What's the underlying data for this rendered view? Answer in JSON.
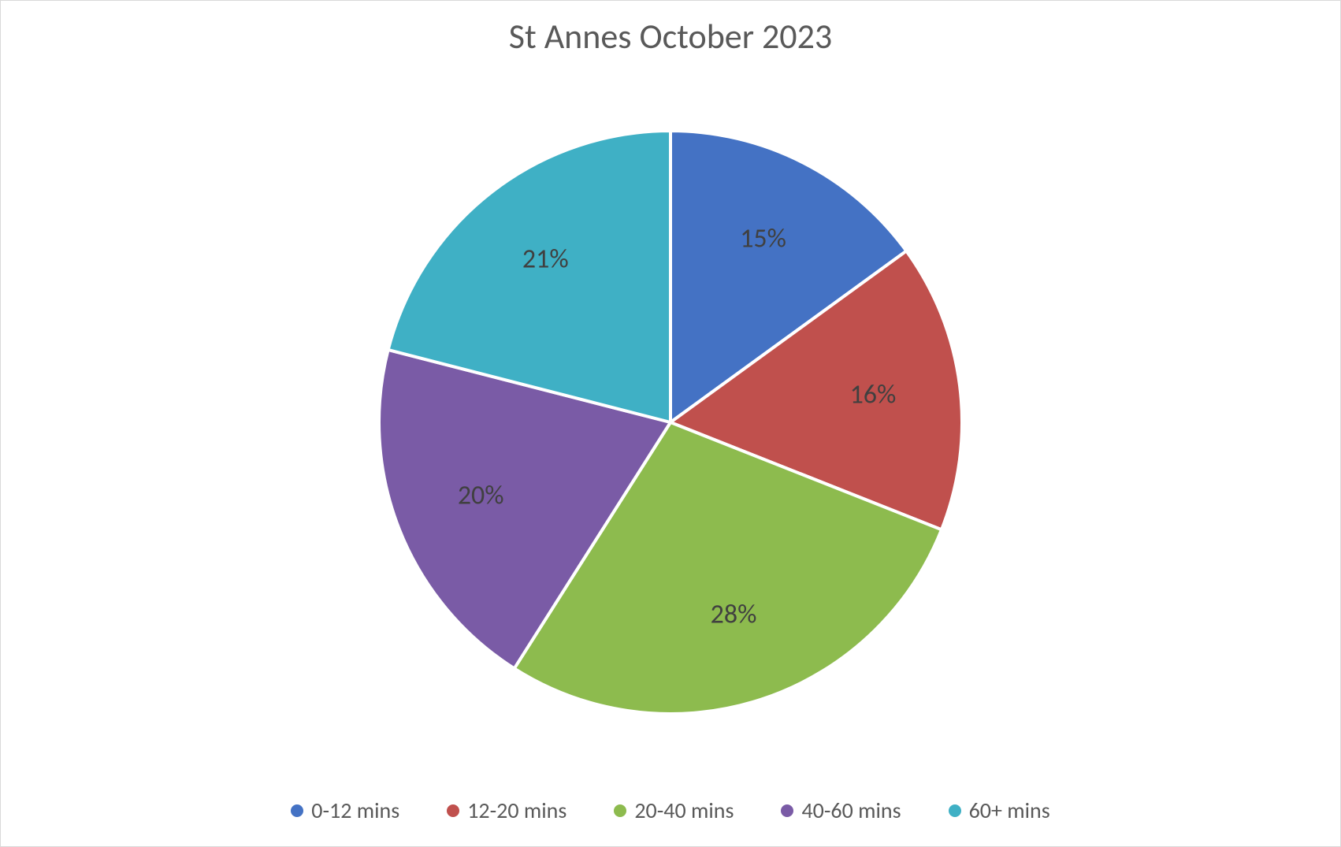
{
  "chart": {
    "type": "pie",
    "title": "St Annes October 2023",
    "title_fontsize": 44,
    "title_color": "#595959",
    "background_color": "#ffffff",
    "border_color": "#d9d9d9",
    "pie_radius": 370,
    "slice_gap_color": "#ffffff",
    "slice_gap_width": 4,
    "label_fontsize": 34,
    "label_color": "#404040",
    "legend_fontsize": 28,
    "legend_color": "#595959",
    "series": [
      {
        "label": "0-12 mins",
        "value": 15,
        "display": "15%",
        "color": "#4472c4"
      },
      {
        "label": "12-20 mins",
        "value": 16,
        "display": "16%",
        "color": "#c0504d"
      },
      {
        "label": "20-40 mins",
        "value": 28,
        "display": "28%",
        "color": "#8dbb4e"
      },
      {
        "label": "40-60 mins",
        "value": 20,
        "display": "20%",
        "color": "#7a5ba6"
      },
      {
        "label": "60+ mins",
        "value": 21,
        "display": "21%",
        "color": "#3fb0c5"
      }
    ]
  }
}
